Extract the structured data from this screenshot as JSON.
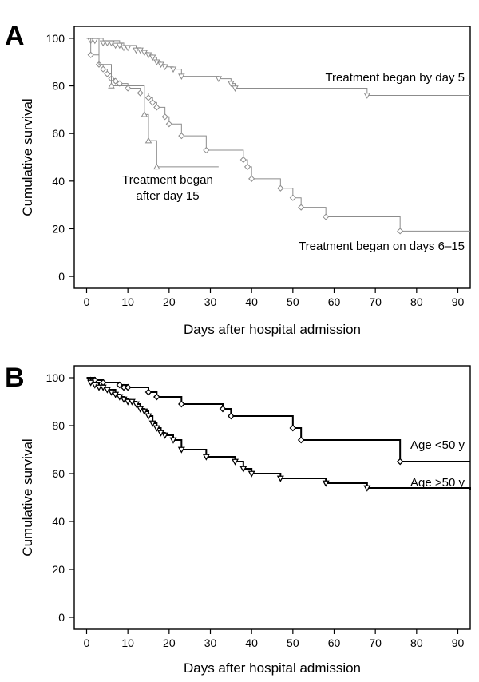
{
  "chart_data": [
    {
      "panel": "A",
      "type": "line",
      "step": true,
      "ylabel": "Cumulative survival",
      "xlabel": "Days after hospital admission",
      "xticks": [
        0,
        10,
        20,
        30,
        40,
        50,
        60,
        70,
        80,
        90
      ],
      "yticks": [
        0,
        20,
        40,
        60,
        80,
        100
      ],
      "xlim": [
        -3,
        93
      ],
      "ylim": [
        -5,
        105
      ],
      "series": [
        {
          "name": "Treatment began by day 5",
          "color": "#8c8c8c",
          "marker": "triangle-down",
          "x": [
            0,
            4,
            8,
            9,
            12,
            13,
            14,
            15,
            16,
            17,
            18,
            19,
            21,
            23,
            32,
            35,
            36,
            68,
            93
          ],
          "y": [
            100,
            99,
            98,
            97,
            96,
            95,
            94,
            93,
            92,
            90,
            89,
            88,
            87,
            84,
            83,
            81,
            79,
            76,
            76
          ],
          "markers_x": [
            1,
            2,
            4,
            5,
            6,
            7,
            8,
            9,
            10,
            12,
            13,
            14,
            15,
            16,
            17,
            18,
            19,
            21,
            23,
            32,
            35,
            36,
            68
          ],
          "markers_y": [
            99,
            99,
            98,
            98,
            98,
            97,
            97,
            96,
            96,
            95,
            95,
            94,
            93,
            92,
            90,
            89,
            88,
            87,
            84,
            83,
            81,
            79,
            76
          ]
        },
        {
          "name": "Treatment began on days 6–15",
          "color": "#8c8c8c",
          "marker": "diamond",
          "x": [
            0,
            1,
            3,
            4,
            5,
            6,
            7,
            8,
            10,
            13,
            15,
            16,
            17,
            19,
            20,
            23,
            29,
            38,
            39,
            40,
            47,
            50,
            52,
            58,
            76,
            93
          ],
          "y": [
            100,
            93,
            89,
            87,
            85,
            83,
            82,
            81,
            79,
            77,
            75,
            73,
            71,
            67,
            64,
            59,
            53,
            49,
            46,
            41,
            37,
            33,
            29,
            25,
            19,
            19
          ],
          "markers_x": [
            1,
            3,
            4,
            5,
            6,
            7,
            8,
            10,
            13,
            15,
            16,
            17,
            19,
            20,
            23,
            29,
            38,
            39,
            40,
            47,
            50,
            52,
            58,
            76
          ],
          "markers_y": [
            93,
            89,
            87,
            85,
            83,
            82,
            81,
            79,
            77,
            75,
            73,
            71,
            67,
            64,
            59,
            53,
            49,
            46,
            41,
            37,
            33,
            29,
            25,
            19
          ]
        },
        {
          "name": "Treatment began after day 15",
          "color": "#8c8c8c",
          "marker": "triangle-up",
          "x": [
            0,
            3,
            6,
            14,
            15,
            17,
            32
          ],
          "y": [
            100,
            89,
            80,
            68,
            57,
            46,
            46
          ],
          "markers_x": [
            6,
            14,
            15,
            17
          ],
          "markers_y": [
            80,
            68,
            57,
            46
          ]
        }
      ],
      "annotations": [
        {
          "text": "Treatment began by day 5",
          "x": 70,
          "y": 84
        },
        {
          "text": "Treatment began",
          "x": 18,
          "y": 40
        },
        {
          "text": "after day 15",
          "x": 18,
          "y": 32
        },
        {
          "text": "Treatment began on days 6–15",
          "x": 72,
          "y": 13
        }
      ]
    },
    {
      "panel": "B",
      "type": "line",
      "step": true,
      "ylabel": "Cumulative survival",
      "xlabel": "Days after hospital admission",
      "xticks": [
        0,
        10,
        20,
        30,
        40,
        50,
        60,
        70,
        80,
        90
      ],
      "yticks": [
        0,
        20,
        40,
        60,
        80,
        100
      ],
      "xlim": [
        -3,
        93
      ],
      "ylim": [
        -5,
        105
      ],
      "series": [
        {
          "name": "Age <50 y",
          "color": "#000000",
          "marker": "diamond",
          "x": [
            0,
            2,
            4,
            8,
            10,
            15,
            17,
            23,
            33,
            35,
            50,
            52,
            76,
            93
          ],
          "y": [
            100,
            99,
            98,
            97,
            96,
            94,
            92,
            89,
            87,
            84,
            79,
            74,
            65,
            65
          ],
          "markers_x": [
            1,
            2,
            4,
            8,
            9,
            10,
            15,
            17,
            23,
            33,
            35,
            50,
            52,
            76
          ],
          "markers_y": [
            99,
            99,
            98,
            97,
            96,
            96,
            94,
            92,
            89,
            87,
            84,
            79,
            74,
            65
          ]
        },
        {
          "name": "Age >50 y",
          "color": "#000000",
          "marker": "triangle-down",
          "x": [
            0,
            1,
            3,
            5,
            7,
            8,
            9,
            10,
            12,
            13,
            14,
            15,
            16,
            17,
            18,
            19,
            21,
            23,
            29,
            36,
            38,
            40,
            47,
            58,
            68,
            93
          ],
          "y": [
            100,
            98,
            96,
            95,
            93,
            92,
            91,
            90,
            89,
            87,
            86,
            84,
            81,
            79,
            77,
            76,
            74,
            70,
            67,
            65,
            62,
            60,
            58,
            56,
            54,
            53
          ],
          "markers_x": [
            1,
            2,
            3,
            4,
            5,
            6,
            7,
            8,
            9,
            10,
            11,
            12,
            13,
            14,
            15,
            16,
            17,
            18,
            19,
            21,
            23,
            29,
            36,
            38,
            40,
            47,
            58,
            68
          ],
          "markers_y": [
            98,
            97,
            96,
            96,
            95,
            94,
            93,
            92,
            91,
            90,
            90,
            89,
            87,
            86,
            84,
            81,
            79,
            77,
            76,
            74,
            70,
            67,
            65,
            62,
            60,
            58,
            56,
            54
          ]
        }
      ],
      "annotations": [
        {
          "text": "Age <50 y",
          "x": 85,
          "y": 71
        },
        {
          "text": "Age >50 y",
          "x": 85,
          "y": 46
        }
      ]
    }
  ]
}
